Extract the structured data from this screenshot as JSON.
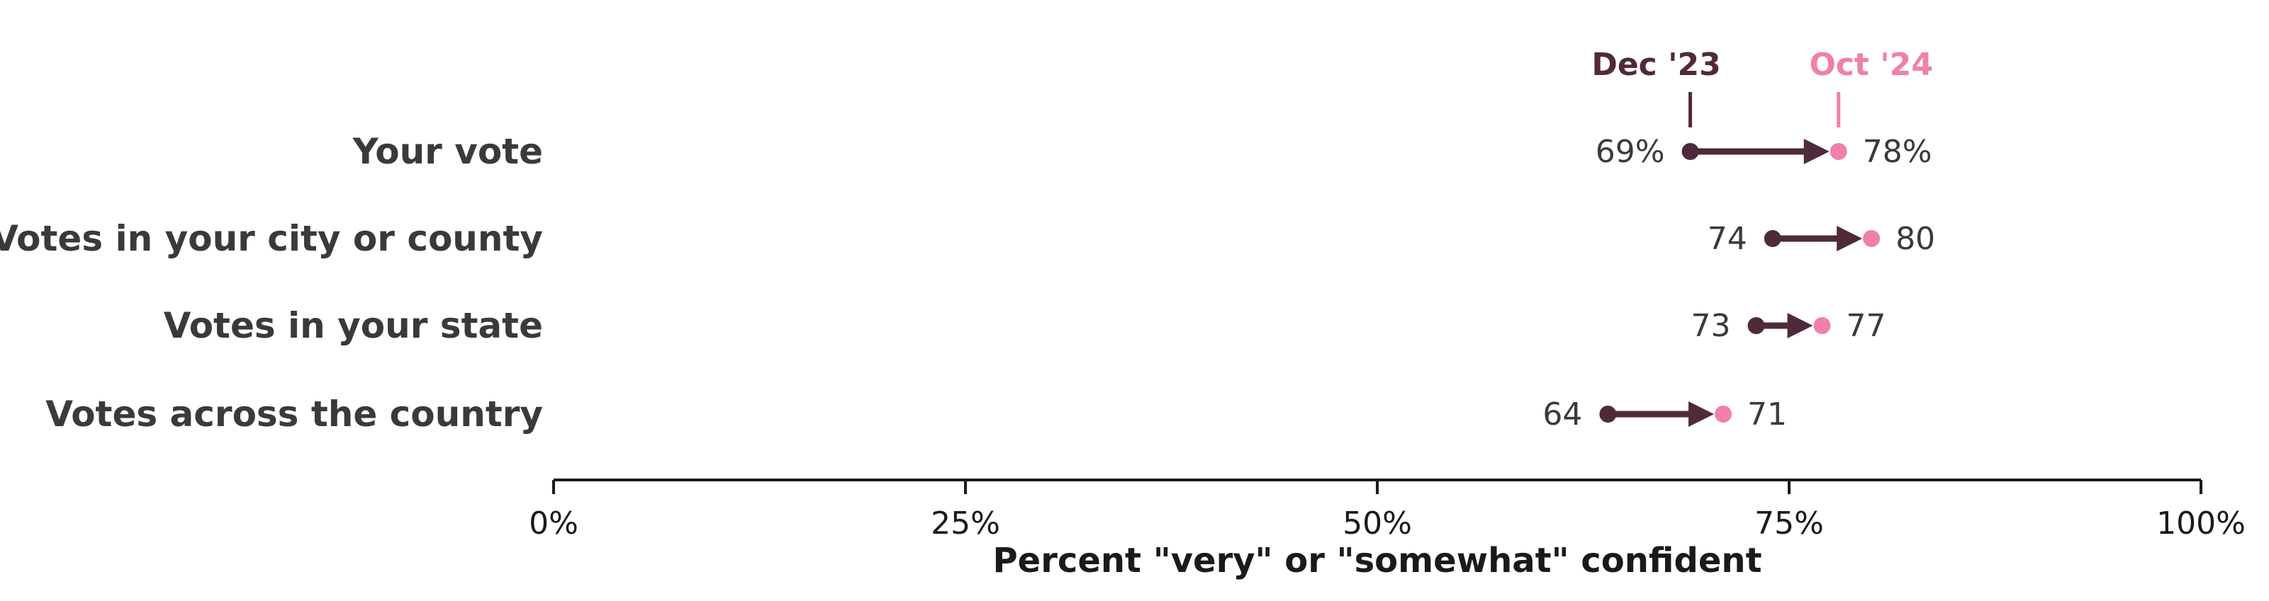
{
  "colors": {
    "start": "#4f2a3a",
    "end": "#f07fab",
    "text": "#3a3a3a",
    "axis": "#1a1a1a"
  },
  "chart_data": {
    "type": "dumbbell",
    "categories": [
      "Your vote",
      "Votes in your city or county",
      "Votes in your state",
      "Votes across the country"
    ],
    "series": [
      {
        "name": "Dec '23",
        "values": [
          69,
          74,
          73,
          64
        ]
      },
      {
        "name": "Oct '24",
        "values": [
          78,
          80,
          77,
          71
        ]
      }
    ],
    "value_labels": [
      {
        "start": "69%",
        "end": "78%"
      },
      {
        "start": "74",
        "end": "80"
      },
      {
        "start": "73",
        "end": "77"
      },
      {
        "start": "64",
        "end": "71"
      }
    ],
    "xlim": [
      0,
      100
    ],
    "xticks": [
      0,
      25,
      50,
      75,
      100
    ],
    "xtick_labels": [
      "0%",
      "25%",
      "50%",
      "75%",
      "100%"
    ],
    "xlabel": "Percent \"very\" or \"somewhat\" confident",
    "ylabel": "",
    "title": "",
    "legend": {
      "placement": "above first row",
      "entries": [
        "Dec '23",
        "Oct '24"
      ]
    },
    "grid": false
  }
}
